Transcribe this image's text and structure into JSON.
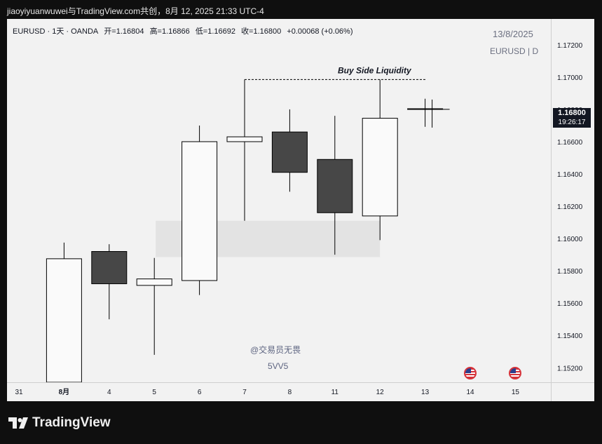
{
  "caption": "jiaoyiyuanwuwei与TradingView.com共创，8月 12, 2025 21:33 UTC-4",
  "header": {
    "symbol": "EURUSD · 1天 · OANDA",
    "open": "开=1.16804",
    "high": "高=1.16866",
    "low": "低=1.16692",
    "close": "收=1.16800",
    "change": "+0.00068 (+0.06%)"
  },
  "watermark": {
    "date": "13/8/2025",
    "symbol": "EURUSD | D"
  },
  "author": {
    "line1": "@交易员无畏",
    "line2": "5VV5"
  },
  "price_badge": {
    "price": "1.16800",
    "countdown": "19:26:17"
  },
  "brand": "TradingView",
  "icons": {
    "flag": "us-flag-icon",
    "logo": "tradingview-logo-icon"
  },
  "colors": {
    "bull": "#fafafa",
    "bear": "#474747",
    "outline": "#000000",
    "zone": "#e3e3e3"
  },
  "chart_data": {
    "type": "candlestick",
    "ylim": [
      1.1511,
      1.1736
    ],
    "y_ticks": [
      "1.17200",
      "1.17000",
      "1.16800",
      "1.16600",
      "1.16400",
      "1.16200",
      "1.16000",
      "1.15800",
      "1.15600",
      "1.15400",
      "1.15200"
    ],
    "x_labels": [
      "31",
      "8月",
      "4",
      "5",
      "6",
      "7",
      "8",
      "11",
      "12",
      "13",
      "14",
      "15"
    ],
    "candles": [
      {
        "date": "31",
        "open": 1.151,
        "high": 1.15975,
        "low": 1.151,
        "close": 1.15875
      },
      {
        "date": "8月",
        "open": 1.1592,
        "high": 1.15965,
        "low": 1.155,
        "close": 1.1572
      },
      {
        "date": "4",
        "open": 1.1571,
        "high": 1.1588,
        "low": 1.1528,
        "close": 1.1575
      },
      {
        "date": "5",
        "open": 1.1574,
        "high": 1.167,
        "low": 1.1565,
        "close": 1.166
      },
      {
        "date": "6",
        "open": 1.166,
        "high": 1.16985,
        "low": 1.1611,
        "close": 1.1663
      },
      {
        "date": "7",
        "open": 1.1666,
        "high": 1.168,
        "low": 1.1629,
        "close": 1.1641
      },
      {
        "date": "8",
        "open": 1.1649,
        "high": 1.1676,
        "low": 1.159,
        "close": 1.1616
      },
      {
        "date": "11",
        "open": 1.1614,
        "high": 1.16985,
        "low": 1.1599,
        "close": 1.16745
      },
      {
        "date": "12",
        "open": 1.16804,
        "high": 1.16866,
        "low": 1.16692,
        "close": 1.168
      }
    ],
    "annotations": [
      {
        "label": "Buy Side Liquidity",
        "price": 1.16985
      }
    ],
    "zone": {
      "low": 1.15885,
      "high": 1.1611
    }
  }
}
